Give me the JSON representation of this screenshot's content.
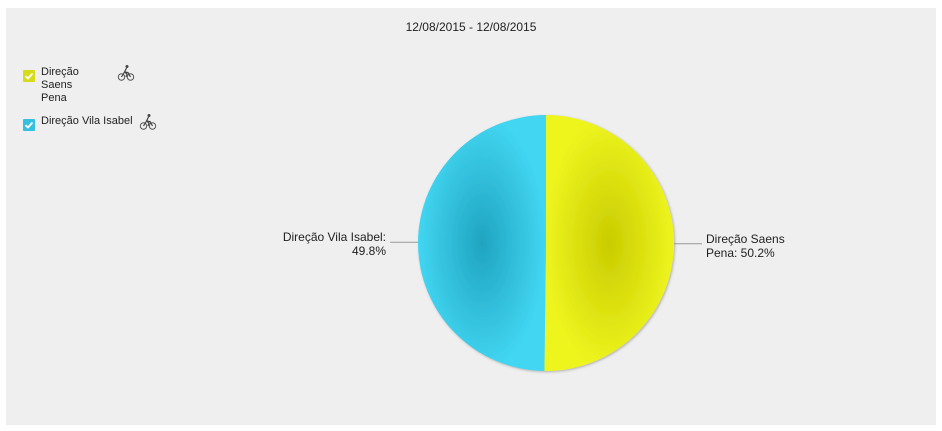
{
  "chart_data": {
    "type": "pie",
    "title": "12/08/2015 - 12/08/2015",
    "legend_position": "top-left",
    "slices": [
      {
        "name": "Direção Saens Pena",
        "value": 50.2,
        "color": "#e9ee1f",
        "label_lines": [
          "Direção Saens",
          "Pena: 50.2%"
        ]
      },
      {
        "name": "Direção Vila Isabel",
        "value": 49.8,
        "color": "#3fd0ea",
        "label_lines": [
          "Direção Vila Isabel:",
          "49.8%"
        ]
      }
    ]
  },
  "legend": {
    "items": [
      {
        "label_line1": "Direção Saens",
        "label_line2": "Pena",
        "color": "#d6dc1a",
        "icon": "bicycle-icon"
      },
      {
        "label_line1": "Direção Vila Isabel",
        "label_line2": "",
        "color": "#35bfe0",
        "icon": "bicycle-icon"
      }
    ]
  }
}
